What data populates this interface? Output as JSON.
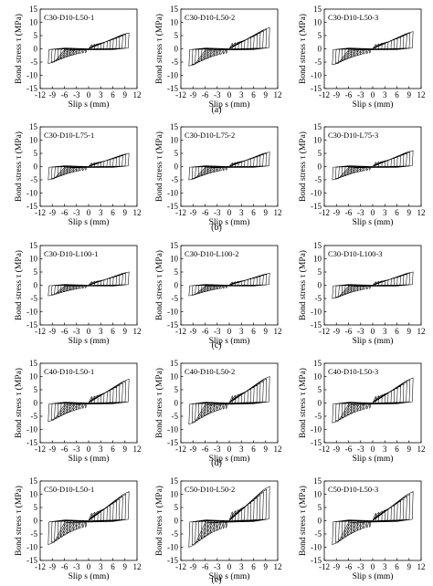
{
  "figure": {
    "x_axis_label": "Slip s (mm)",
    "y_axis_label": "Bond stress τ (MPa)",
    "x_ticks": [
      -12,
      -9,
      -6,
      -3,
      0,
      3,
      6,
      9,
      12
    ],
    "y_ticks": [
      15,
      10,
      5,
      0,
      -5,
      -10,
      -15
    ],
    "row_labels": [
      "(a)",
      "(b)",
      "(c)",
      "(d)",
      "(e)"
    ]
  },
  "chart_data": [
    {
      "type": "line",
      "title": "C30-D10-L50-1",
      "xlabel": "Slip s (mm)",
      "ylabel": "Bond stress τ (MPa)",
      "xlim": [
        -12,
        12
      ],
      "ylim": [
        -15,
        15
      ],
      "xmax_pos": 10,
      "xmax_neg": -10,
      "peak_pos": 6,
      "peak_neg": -5.5,
      "cycles": 13
    },
    {
      "type": "line",
      "title": "C30-D10-L50-2",
      "xlabel": "Slip s (mm)",
      "ylabel": "Bond stress τ (MPa)",
      "xlim": [
        -12,
        12
      ],
      "ylim": [
        -15,
        15
      ],
      "xmax_pos": 10,
      "xmax_neg": -10,
      "peak_pos": 8,
      "peak_neg": -6.5,
      "cycles": 13
    },
    {
      "type": "line",
      "title": "C30-D10-L50-3",
      "xlabel": "Slip s (mm)",
      "ylabel": "Bond stress τ (MPa)",
      "xlim": [
        -12,
        12
      ],
      "ylim": [
        -15,
        15
      ],
      "xmax_pos": 10,
      "xmax_neg": -10,
      "peak_pos": 6.5,
      "peak_neg": -6,
      "cycles": 13
    },
    {
      "type": "line",
      "title": "C30-D10-L75-1",
      "xlabel": "Slip s (mm)",
      "ylabel": "Bond stress τ (MPa)",
      "xlim": [
        -12,
        12
      ],
      "ylim": [
        -15,
        15
      ],
      "xmax_pos": 10,
      "xmax_neg": -10,
      "peak_pos": 5,
      "peak_neg": -5,
      "cycles": 13
    },
    {
      "type": "line",
      "title": "C30-D10-L75-2",
      "xlabel": "Slip s (mm)",
      "ylabel": "Bond stress τ (MPa)",
      "xlim": [
        -12,
        12
      ],
      "ylim": [
        -15,
        15
      ],
      "xmax_pos": 10,
      "xmax_neg": -10,
      "peak_pos": 5.5,
      "peak_neg": -5,
      "cycles": 13
    },
    {
      "type": "line",
      "title": "C30-D10-L75-3",
      "xlabel": "Slip s (mm)",
      "ylabel": "Bond stress τ (MPa)",
      "xlim": [
        -12,
        12
      ],
      "ylim": [
        -15,
        15
      ],
      "xmax_pos": 10,
      "xmax_neg": -10,
      "peak_pos": 6,
      "peak_neg": -5,
      "cycles": 13
    },
    {
      "type": "line",
      "title": "C30-D10-L100-1",
      "xlabel": "Slip s (mm)",
      "ylabel": "Bond stress τ (MPa)",
      "xlim": [
        -12,
        12
      ],
      "ylim": [
        -15,
        15
      ],
      "xmax_pos": 10,
      "xmax_neg": -10,
      "peak_pos": 5,
      "peak_neg": -4,
      "cycles": 13
    },
    {
      "type": "line",
      "title": "C30-D10-L100-2",
      "xlabel": "Slip s (mm)",
      "ylabel": "Bond stress τ (MPa)",
      "xlim": [
        -12,
        12
      ],
      "ylim": [
        -15,
        15
      ],
      "xmax_pos": 10,
      "xmax_neg": -10,
      "peak_pos": 4.5,
      "peak_neg": -4,
      "cycles": 13
    },
    {
      "type": "line",
      "title": "C30-D10-L100-3",
      "xlabel": "Slip s (mm)",
      "ylabel": "Bond stress τ (MPa)",
      "xlim": [
        -12,
        12
      ],
      "ylim": [
        -15,
        15
      ],
      "xmax_pos": 10,
      "xmax_neg": -10,
      "peak_pos": 5,
      "peak_neg": -5,
      "cycles": 13
    },
    {
      "type": "line",
      "title": "C40-D10-L50-1",
      "xlabel": "Slip s (mm)",
      "ylabel": "Bond stress τ (MPa)",
      "xlim": [
        -12,
        12
      ],
      "ylim": [
        -15,
        15
      ],
      "xmax_pos": 10,
      "xmax_neg": -10,
      "peak_pos": 9,
      "peak_neg": -7,
      "cycles": 13
    },
    {
      "type": "line",
      "title": "C40-D10-L50-2",
      "xlabel": "Slip s (mm)",
      "ylabel": "Bond stress τ (MPa)",
      "xlim": [
        -12,
        12
      ],
      "ylim": [
        -15,
        15
      ],
      "xmax_pos": 10,
      "xmax_neg": -10,
      "peak_pos": 10,
      "peak_neg": -8,
      "cycles": 13
    },
    {
      "type": "line",
      "title": "C40-D10-L50-3",
      "xlabel": "Slip s (mm)",
      "ylabel": "Bond stress τ (MPa)",
      "xlim": [
        -12,
        12
      ],
      "ylim": [
        -15,
        15
      ],
      "xmax_pos": 10,
      "xmax_neg": -10,
      "peak_pos": 9.5,
      "peak_neg": -7.5,
      "cycles": 13
    },
    {
      "type": "line",
      "title": "C50-D10-L50-1",
      "xlabel": "Slip s (mm)",
      "ylabel": "Bond stress τ (MPa)",
      "xlim": [
        -12,
        12
      ],
      "ylim": [
        -15,
        15
      ],
      "xmax_pos": 10,
      "xmax_neg": -10,
      "peak_pos": 11,
      "peak_neg": -9,
      "cycles": 13
    },
    {
      "type": "line",
      "title": "C50-D10-L50-2",
      "xlabel": "Slip s (mm)",
      "ylabel": "Bond stress τ (MPa)",
      "xlim": [
        -12,
        12
      ],
      "ylim": [
        -15,
        15
      ],
      "xmax_pos": 10,
      "xmax_neg": -10,
      "peak_pos": 13,
      "peak_neg": -10,
      "cycles": 13
    },
    {
      "type": "line",
      "title": "C50-D10-L50-3",
      "xlabel": "Slip s (mm)",
      "ylabel": "Bond stress τ (MPa)",
      "xlim": [
        -12,
        12
      ],
      "ylim": [
        -15,
        15
      ],
      "xmax_pos": 10,
      "xmax_neg": -10,
      "peak_pos": 11,
      "peak_neg": -9,
      "cycles": 13
    }
  ]
}
